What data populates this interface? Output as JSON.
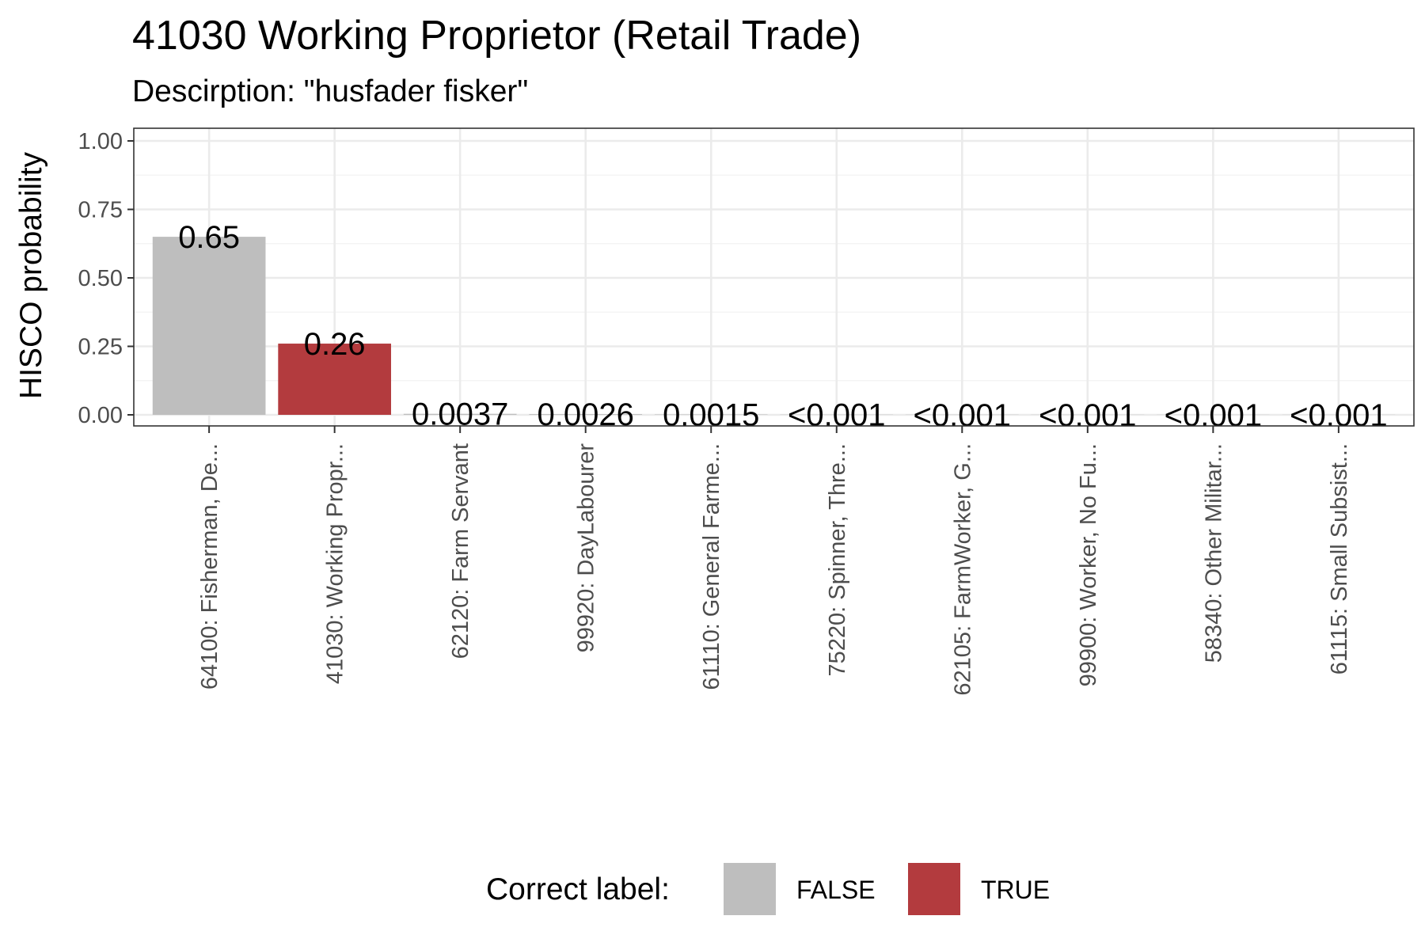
{
  "chart_data": {
    "type": "bar",
    "title": "41030 Working Proprietor (Retail Trade)",
    "subtitle": "Descirption: \"husfader fisker\"",
    "ylabel": "HISCO probability",
    "xlabel": "",
    "ylim": [
      0,
      1
    ],
    "yticks": [
      "0.00",
      "0.25",
      "0.50",
      "0.75",
      "1.00"
    ],
    "grid": true,
    "legend_position": "bottom",
    "legend": {
      "title": "Correct label:",
      "entries": [
        {
          "label": "FALSE",
          "color": "#bebebe"
        },
        {
          "label": "TRUE",
          "color": "#b33b3e"
        }
      ]
    },
    "categories": [
      "64100: Fisherman, De...",
      "41030: Working Propr...",
      "62120: Farm Servant",
      "99920: DayLabourer",
      "61110: General Farme...",
      "75220: Spinner, Thre...",
      "62105: FarmWorker, G...",
      "99900: Worker, No Fu...",
      "58340: Other Militar...",
      "61115: Small Subsist..."
    ],
    "values": [
      0.65,
      0.26,
      0.0037,
      0.0026,
      0.0015,
      0.0008,
      0.0007,
      0.0006,
      0.0005,
      0.0004
    ],
    "value_labels": [
      "0.65",
      "0.26",
      "0.0037",
      "0.0026",
      "0.0015",
      "<0.001",
      "<0.001",
      "<0.001",
      "<0.001",
      "<0.001"
    ],
    "correct": [
      false,
      true,
      false,
      false,
      false,
      false,
      false,
      false,
      false,
      false
    ]
  }
}
